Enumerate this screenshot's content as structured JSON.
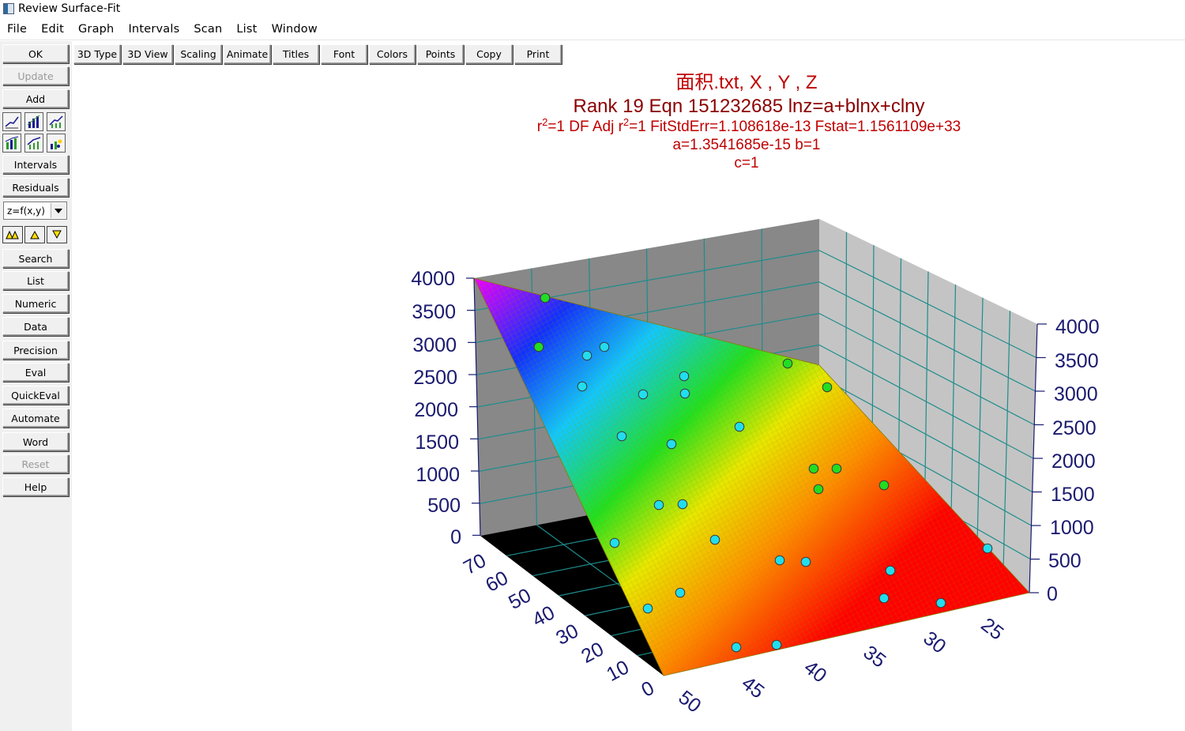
{
  "window": {
    "title": "Review Surface-Fit",
    "icon": "app-window-icon"
  },
  "menu": [
    "File",
    "Edit",
    "Graph",
    "Intervals",
    "Scan",
    "List",
    "Window"
  ],
  "toolbar": [
    "3D Type",
    "3D View",
    "Scaling",
    "Animate",
    "Titles",
    "Font",
    "Colors",
    "Points",
    "Copy",
    "Print"
  ],
  "sidebar": {
    "ok": "OK",
    "update": "Update",
    "add": "Add",
    "graph_type_icons": [
      "line-graph-icon",
      "bar-graph-icon",
      "line-bar-graph-icon",
      "bar-line-graph-icon",
      "area-graph-icon",
      "scatter-bar-graph-icon"
    ],
    "intervals": "Intervals",
    "residuals": "Residuals",
    "combo_value": "z=f(x,y)",
    "rank_icons": [
      "double-triangle-icon",
      "triangle-up-icon",
      "triangle-down-icon"
    ],
    "buttons": [
      "Search",
      "List",
      "Numeric",
      "Data",
      "Precision",
      "Eval",
      "QuickEval",
      "Automate",
      "Word",
      "Reset",
      "Help"
    ]
  },
  "plot": {
    "title_line1": "面积.txt, X , Y , Z",
    "title_line2": "Rank 19  Eqn 151232685  lnz=a+blnx+clny",
    "title_line3": {
      "r2_label": "r",
      "r2_sup": "2",
      "r2_val": "=1  DF Adj r",
      "adj_sup": "2",
      "rest": "=1  FitStdErr=1.108618e-13  Fstat=1.1561109e+33"
    },
    "title_line4": "a=1.3541685e-15 b=1",
    "title_line5": "c=1",
    "left_z_ticks": [
      "4000",
      "3500",
      "3000",
      "2500",
      "2000",
      "1500",
      "1000",
      "500",
      "0"
    ],
    "right_z_ticks": [
      "4000",
      "3500",
      "3000",
      "2500",
      "2000",
      "1500",
      "1000",
      "500",
      "0"
    ],
    "y_axis_ticks": [
      "70",
      "60",
      "50",
      "40",
      "30",
      "20",
      "10",
      "0"
    ],
    "x_axis_ticks": [
      "50",
      "45",
      "40",
      "35",
      "30",
      "25"
    ]
  },
  "chart_data": {
    "type": "scatter",
    "surface": "lnz = a + b*ln(x) + c*ln(y)",
    "coefficients": {
      "a": 1.3541685e-15,
      "b": 1,
      "c": 1
    },
    "z_range": [
      0,
      4000
    ],
    "y_range": [
      0,
      75
    ],
    "x_range": [
      22,
      50
    ],
    "colors": {
      "point_above": "#22dd22",
      "point_below": "#22ddee",
      "title": "#c00000",
      "tick": "#1a1a70"
    },
    "points": [
      {
        "sx": 690,
        "sy": 377,
        "above": true
      },
      {
        "sx": 682,
        "sy": 439,
        "above": true
      },
      {
        "sx": 743,
        "sy": 450,
        "above": false
      },
      {
        "sx": 765,
        "sy": 439,
        "above": false
      },
      {
        "sx": 737,
        "sy": 489,
        "above": false
      },
      {
        "sx": 814,
        "sy": 499,
        "above": false
      },
      {
        "sx": 866,
        "sy": 476,
        "above": false
      },
      {
        "sx": 867,
        "sy": 498,
        "above": false
      },
      {
        "sx": 787,
        "sy": 552,
        "above": false
      },
      {
        "sx": 850,
        "sy": 562,
        "above": false
      },
      {
        "sx": 936,
        "sy": 540,
        "above": false
      },
      {
        "sx": 997,
        "sy": 460,
        "above": true
      },
      {
        "sx": 1047,
        "sy": 490,
        "above": true
      },
      {
        "sx": 1030,
        "sy": 593,
        "above": true
      },
      {
        "sx": 1059,
        "sy": 593,
        "above": true
      },
      {
        "sx": 1036,
        "sy": 619,
        "above": true
      },
      {
        "sx": 1119,
        "sy": 614,
        "above": true
      },
      {
        "sx": 834,
        "sy": 639,
        "above": false
      },
      {
        "sx": 864,
        "sy": 638,
        "above": false
      },
      {
        "sx": 778,
        "sy": 687,
        "above": false
      },
      {
        "sx": 905,
        "sy": 683,
        "above": false
      },
      {
        "sx": 987,
        "sy": 709,
        "above": false
      },
      {
        "sx": 1020,
        "sy": 711,
        "above": false
      },
      {
        "sx": 1127,
        "sy": 722,
        "above": false
      },
      {
        "sx": 1250,
        "sy": 694,
        "above": false
      },
      {
        "sx": 861,
        "sy": 750,
        "above": false
      },
      {
        "sx": 820,
        "sy": 770,
        "above": false
      },
      {
        "sx": 1119,
        "sy": 757,
        "above": false
      },
      {
        "sx": 1191,
        "sy": 763,
        "above": false
      },
      {
        "sx": 932,
        "sy": 819,
        "above": false
      },
      {
        "sx": 983,
        "sy": 816,
        "above": false
      }
    ]
  }
}
